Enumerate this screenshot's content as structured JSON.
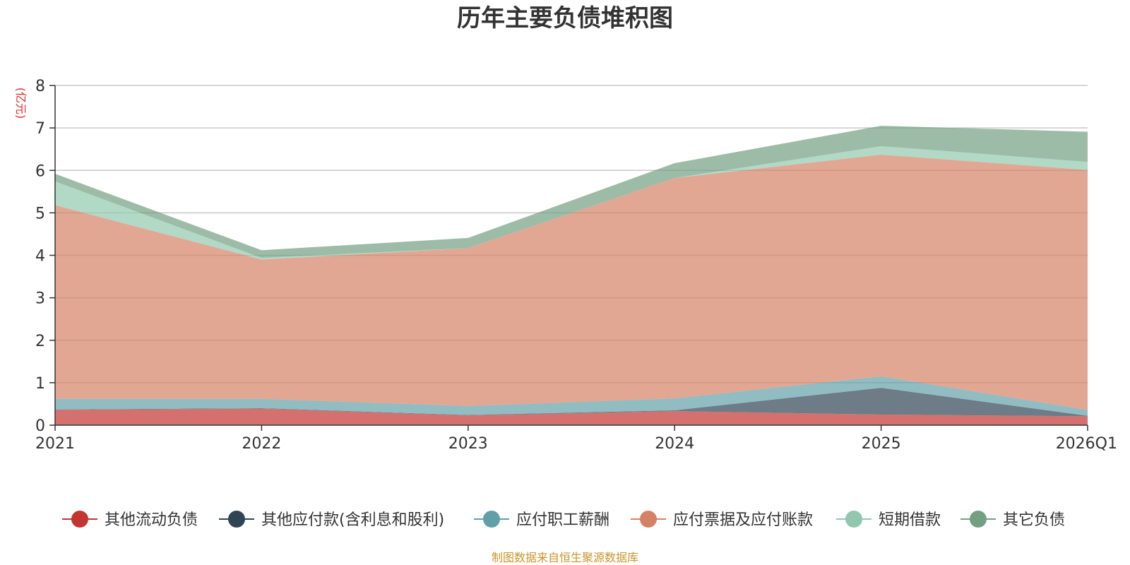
{
  "chart_data": {
    "type": "area",
    "stacked": true,
    "title": "历年主要负债堆积图",
    "unit_label": "(亿元)",
    "categories": [
      "2021",
      "2022",
      "2023",
      "2024",
      "2025",
      "2026Q1"
    ],
    "ylim": [
      0,
      8
    ],
    "yticks": [
      "0",
      "1",
      "2",
      "3",
      "4",
      "5",
      "6",
      "7",
      "8"
    ],
    "grid": true,
    "legend_position": "bottom",
    "series": [
      {
        "name": "其他流动负债",
        "color": "#c23531",
        "values": [
          0.36,
          0.39,
          0.23,
          0.33,
          0.25,
          0.21
        ]
      },
      {
        "name": "其他应付款(含利息和股利)",
        "color": "#2f4554",
        "values": [
          0.01,
          0.01,
          0.01,
          0.02,
          0.63,
          0.01
        ]
      },
      {
        "name": "应付职工薪酬",
        "color": "#61a0a8",
        "values": [
          0.25,
          0.22,
          0.21,
          0.28,
          0.27,
          0.14
        ]
      },
      {
        "name": "应付票据及应付账款",
        "color": "#d48265",
        "values": [
          4.56,
          3.28,
          3.72,
          5.19,
          5.22,
          5.65
        ]
      },
      {
        "name": "短期借款",
        "color": "#91c7ae",
        "values": [
          0.56,
          0.04,
          0.0,
          0.0,
          0.2,
          0.19
        ]
      },
      {
        "name": "其它负债",
        "color": "#749f83",
        "values": [
          0.18,
          0.18,
          0.24,
          0.35,
          0.48,
          0.71
        ]
      }
    ]
  },
  "source_note": "制图数据来自恒生聚源数据库"
}
